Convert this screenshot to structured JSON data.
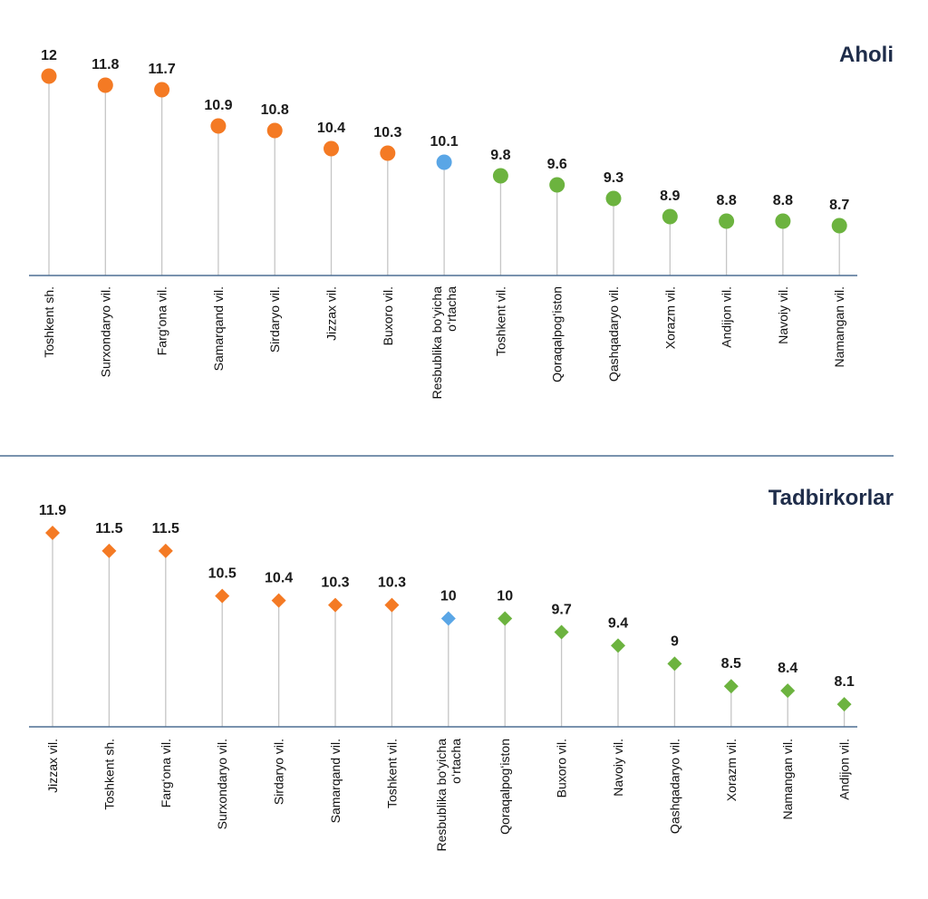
{
  "colors": {
    "above": "#f47a24",
    "average": "#5aa6e6",
    "below": "#6cb33f",
    "stem": "#c6c6c6",
    "axis": "#4d6f93",
    "title": "#1f2d4a"
  },
  "chart_data": [
    {
      "type": "lollipop",
      "marker": "circle",
      "title": "Aholi",
      "categories": [
        "Toshkent sh.",
        "Surxondaryo vil.",
        "Farg‘ona vil.",
        "Samarqand vil.",
        "Sirdaryo vil.",
        "Jizzax vil.",
        "Buxoro vil.",
        "Resbublika bo‘yicha o‘rtacha",
        "Toshkent vil.",
        "Qoraqalpog‘iston",
        "Qashqadaryo vil.",
        "Xorazm vil.",
        "Andijon vil.",
        "Navoiy vil.",
        "Namangan vil."
      ],
      "values": [
        12,
        11.8,
        11.7,
        10.9,
        10.8,
        10.4,
        10.3,
        10.1,
        9.8,
        9.6,
        9.3,
        8.9,
        8.8,
        8.8,
        8.7
      ],
      "value_labels": [
        "12",
        "11.8",
        "11.7",
        "10.9",
        "10.8",
        "10.4",
        "10.3",
        "10.1",
        "9.8",
        "9.6",
        "9.3",
        "8.9",
        "8.8",
        "8.8",
        "8.7"
      ],
      "color_groups": [
        "above",
        "above",
        "above",
        "above",
        "above",
        "above",
        "above",
        "average",
        "below",
        "below",
        "below",
        "below",
        "below",
        "below",
        "below"
      ]
    },
    {
      "type": "lollipop",
      "marker": "diamond",
      "title": "Tadbirkorlar",
      "categories": [
        "Jizzax vil.",
        "Toshkent sh.",
        "Farg‘ona vil.",
        "Surxondaryo vil.",
        "Sirdaryo vil.",
        "Samarqand vil.",
        "Toshkent vil.",
        "Resbublika bo‘yicha o‘rtacha",
        "Qoraqalpog‘iston",
        "Buxoro vil.",
        "Navoiy vil.",
        "Qashqadaryo vil.",
        "Xorazm vil.",
        "Namangan vil.",
        "Andijon vil."
      ],
      "values": [
        11.9,
        11.5,
        11.5,
        10.5,
        10.4,
        10.3,
        10.3,
        10,
        10,
        9.7,
        9.4,
        9,
        8.5,
        8.4,
        8.1
      ],
      "value_labels": [
        "11.9",
        "11.5",
        "11.5",
        "10.5",
        "10.4",
        "10.3",
        "10.3",
        "10",
        "10",
        "9.7",
        "9.4",
        "9",
        "8.5",
        "8.4",
        "8.1"
      ],
      "color_groups": [
        "above",
        "above",
        "above",
        "above",
        "above",
        "above",
        "above",
        "average",
        "below",
        "below",
        "below",
        "below",
        "below",
        "below",
        "below"
      ]
    }
  ]
}
